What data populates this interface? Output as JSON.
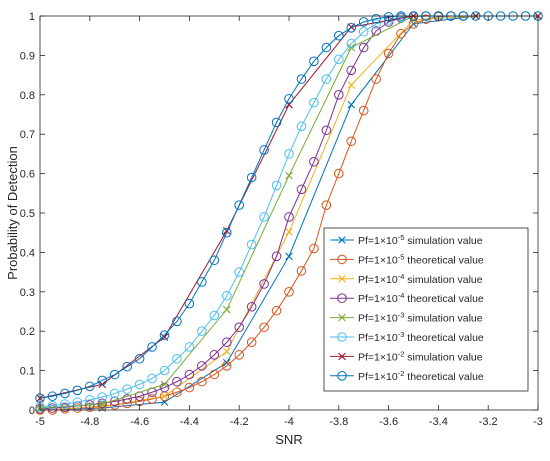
{
  "chart_data": {
    "type": "line",
    "title": "",
    "xlabel": "SNR",
    "ylabel": "Probability of Detection",
    "xlim": [
      -5,
      -3
    ],
    "ylim": [
      0,
      1
    ],
    "xticks": [
      -5,
      -4.8,
      -4.6,
      -4.4,
      -4.2,
      -4,
      -3.8,
      -3.6,
      -3.4,
      -3.2,
      -3
    ],
    "xtick_labels": [
      "-5",
      "-4.8",
      "-4.6",
      "-4.4",
      "-4.2",
      "-4",
      "-3.8",
      "-3.6",
      "-3.4",
      "-3.2",
      "-3"
    ],
    "yticks": [
      0,
      0.1,
      0.2,
      0.3,
      0.4,
      0.5,
      0.6,
      0.7,
      0.8,
      0.9,
      1
    ],
    "ytick_labels": [
      "0",
      "0.1",
      "0.2",
      "0.3",
      "0.4",
      "0.5",
      "0.6",
      "0.7",
      "0.8",
      "0.9",
      "1"
    ],
    "grid": false,
    "legend_position": "bottom-right",
    "series": [
      {
        "name": "Pf=1×10-5 simulation value",
        "legend": {
          "base": "Pf=1×10",
          "exp": "-5",
          "suffix": " simulation value"
        },
        "color": "#0072BD",
        "marker": "x",
        "x": [
          -5,
          -4.75,
          -4.5,
          -4.25,
          -4,
          -3.75,
          -3.5,
          -3.25,
          -3
        ],
        "y": [
          0.0,
          0.005,
          0.02,
          0.12,
          0.39,
          0.775,
          0.98,
          1.0,
          1.0
        ]
      },
      {
        "name": "Pf=1×10-5 theoretical value",
        "legend": {
          "base": "Pf=1×10",
          "exp": "-5",
          "suffix": " theoretical value"
        },
        "color": "#D95319",
        "marker": "o",
        "x": [
          -5,
          -4.95,
          -4.9,
          -4.85,
          -4.8,
          -4.75,
          -4.7,
          -4.65,
          -4.6,
          -4.55,
          -4.5,
          -4.45,
          -4.4,
          -4.35,
          -4.3,
          -4.25,
          -4.2,
          -4.15,
          -4.1,
          -4.05,
          -4,
          -3.95,
          -3.9,
          -3.85,
          -3.8,
          -3.75,
          -3.7,
          -3.65,
          -3.6,
          -3.55,
          -3.5,
          -3.45,
          -3.4,
          -3.35,
          -3.3
        ],
        "y": [
          0.0,
          0.0,
          0.003,
          0.005,
          0.007,
          0.01,
          0.013,
          0.017,
          0.022,
          0.028,
          0.035,
          0.045,
          0.057,
          0.072,
          0.09,
          0.112,
          0.14,
          0.172,
          0.21,
          0.252,
          0.3,
          0.353,
          0.41,
          0.52,
          0.6,
          0.682,
          0.76,
          0.84,
          0.905,
          0.955,
          0.98,
          0.992,
          0.998,
          1.0,
          1.0
        ]
      },
      {
        "name": "Pf=1×10-4 simulation value",
        "legend": {
          "base": "Pf=1×10",
          "exp": "-4",
          "suffix": " simulation value"
        },
        "color": "#EDB120",
        "marker": "x",
        "x": [
          -5,
          -4.75,
          -4.5,
          -4.25,
          -4,
          -3.75,
          -3.5,
          -3.25,
          -3
        ],
        "y": [
          0.0,
          0.008,
          0.035,
          0.148,
          0.452,
          0.825,
          0.99,
          1.0,
          1.0
        ]
      },
      {
        "name": "Pf=1×10-4 theoretical value",
        "legend": {
          "base": "Pf=1×10",
          "exp": "-4",
          "suffix": " theoretical value"
        },
        "color": "#7E2F8E",
        "marker": "o",
        "x": [
          -5,
          -4.95,
          -4.9,
          -4.85,
          -4.8,
          -4.75,
          -4.7,
          -4.65,
          -4.6,
          -4.55,
          -4.5,
          -4.45,
          -4.4,
          -4.35,
          -4.3,
          -4.25,
          -4.2,
          -4.15,
          -4.1,
          -4.05,
          -4,
          -3.95,
          -3.9,
          -3.85,
          -3.8,
          -3.75,
          -3.7,
          -3.65,
          -3.6,
          -3.55,
          -3.5,
          -3.45,
          -3.4,
          -3.35,
          -3.3
        ],
        "y": [
          0.003,
          0.005,
          0.007,
          0.01,
          0.013,
          0.017,
          0.022,
          0.028,
          0.035,
          0.045,
          0.057,
          0.072,
          0.09,
          0.112,
          0.14,
          0.172,
          0.21,
          0.262,
          0.32,
          0.39,
          0.49,
          0.56,
          0.63,
          0.71,
          0.8,
          0.862,
          0.92,
          0.962,
          0.985,
          0.995,
          0.999,
          1.0,
          1.0,
          1.0,
          1.0
        ]
      },
      {
        "name": "Pf=1×10-3 simulation value",
        "legend": {
          "base": "Pf=1×10",
          "exp": "-3",
          "suffix": " simulation value"
        },
        "color": "#77AC30",
        "marker": "x",
        "x": [
          -5,
          -4.75,
          -4.5,
          -4.25,
          -4,
          -3.75,
          -3.5,
          -3.25,
          -3
        ],
        "y": [
          0.005,
          0.015,
          0.065,
          0.255,
          0.595,
          0.92,
          1.0,
          1.0,
          1.0
        ]
      },
      {
        "name": "Pf=1×10-3 theoretical value",
        "legend": {
          "base": "Pf=1×10",
          "exp": "-3",
          "suffix": " theoretical value"
        },
        "color": "#4DBEEE",
        "marker": "o",
        "x": [
          -5,
          -4.95,
          -4.9,
          -4.85,
          -4.8,
          -4.75,
          -4.7,
          -4.65,
          -4.6,
          -4.55,
          -4.5,
          -4.45,
          -4.4,
          -4.35,
          -4.3,
          -4.25,
          -4.2,
          -4.15,
          -4.1,
          -4.05,
          -4,
          -3.95,
          -3.9,
          -3.85,
          -3.8,
          -3.75,
          -3.7,
          -3.65,
          -3.6,
          -3.55,
          -3.5,
          -3.45,
          -3.4,
          -3.35,
          -3.3
        ],
        "y": [
          0.008,
          0.011,
          0.015,
          0.02,
          0.026,
          0.033,
          0.042,
          0.053,
          0.065,
          0.08,
          0.1,
          0.13,
          0.16,
          0.2,
          0.24,
          0.29,
          0.35,
          0.42,
          0.49,
          0.57,
          0.65,
          0.72,
          0.78,
          0.84,
          0.89,
          0.93,
          0.96,
          0.98,
          0.99,
          0.997,
          1.0,
          1.0,
          1.0,
          1.0,
          1.0
        ]
      },
      {
        "name": "Pf=1×10-2 simulation value",
        "legend": {
          "base": "Pf=1×10",
          "exp": "-2",
          "suffix": " simulation value"
        },
        "color": "#A2142F",
        "marker": "x",
        "x": [
          -5,
          -4.75,
          -4.5,
          -4.25,
          -4,
          -3.75,
          -3.5,
          -3.25,
          -3
        ],
        "y": [
          0.03,
          0.065,
          0.185,
          0.455,
          0.775,
          0.972,
          1.0,
          1.0,
          1.0
        ]
      },
      {
        "name": "Pf=1×10-2 theoretical value",
        "legend": {
          "base": "Pf=1×10",
          "exp": "-2",
          "suffix": " theoretical value"
        },
        "color": "#0072BD",
        "marker": "o",
        "x": [
          -5,
          -4.95,
          -4.9,
          -4.85,
          -4.8,
          -4.75,
          -4.7,
          -4.65,
          -4.6,
          -4.55,
          -4.5,
          -4.45,
          -4.4,
          -4.35,
          -4.3,
          -4.25,
          -4.2,
          -4.15,
          -4.1,
          -4.05,
          -4,
          -3.95,
          -3.9,
          -3.85,
          -3.8,
          -3.75,
          -3.7,
          -3.65,
          -3.6,
          -3.55,
          -3.5,
          -3.45,
          -3.4,
          -3.35,
          -3.3,
          -3.25,
          -3.2,
          -3.15,
          -3.1,
          -3.05,
          -3
        ],
        "y": [
          0.03,
          0.035,
          0.042,
          0.05,
          0.06,
          0.075,
          0.09,
          0.11,
          0.13,
          0.16,
          0.19,
          0.225,
          0.27,
          0.325,
          0.38,
          0.45,
          0.52,
          0.59,
          0.66,
          0.73,
          0.79,
          0.84,
          0.885,
          0.92,
          0.95,
          0.97,
          0.985,
          0.993,
          0.998,
          1.0,
          1.0,
          1.0,
          1.0,
          1.0,
          1.0,
          1.0,
          1.0,
          1.0,
          1.0,
          1.0,
          1.0
        ]
      }
    ]
  }
}
